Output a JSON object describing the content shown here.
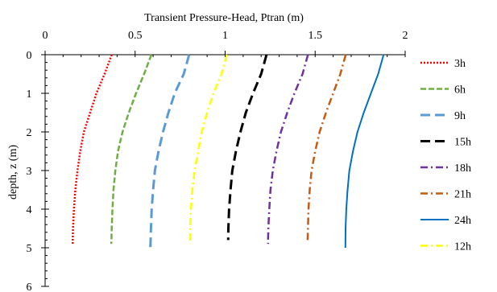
{
  "chart_data": {
    "type": "line",
    "title": "Transient Pressure-Head, Ptran (m)",
    "xlabel": "Transient Pressure-Head, Ptran (m)",
    "ylabel": "depth, z (m)",
    "xlim": [
      0,
      2
    ],
    "ylim": [
      0,
      6
    ],
    "x_axis_position": "top",
    "y_axis_reversed": true,
    "xticks": [
      "0",
      "0.5",
      "1",
      "1.5",
      "2"
    ],
    "yticks": [
      "0",
      "1",
      "2",
      "3",
      "4",
      "5",
      "6"
    ],
    "grid": false,
    "legend_position": "right",
    "series": [
      {
        "name": "3h",
        "color": "#ff0000",
        "dash": "dot",
        "points": [
          [
            0.37,
            0
          ],
          [
            0.33,
            0.5
          ],
          [
            0.285,
            1
          ],
          [
            0.25,
            1.5
          ],
          [
            0.215,
            2
          ],
          [
            0.195,
            2.5
          ],
          [
            0.18,
            3
          ],
          [
            0.168,
            3.5
          ],
          [
            0.16,
            4
          ],
          [
            0.155,
            4.5
          ],
          [
            0.153,
            4.9
          ]
        ]
      },
      {
        "name": "6h",
        "color": "#70ad47",
        "dash": "dash",
        "points": [
          [
            0.59,
            0
          ],
          [
            0.55,
            0.5
          ],
          [
            0.505,
            1
          ],
          [
            0.465,
            1.5
          ],
          [
            0.43,
            2
          ],
          [
            0.405,
            2.5
          ],
          [
            0.39,
            3
          ],
          [
            0.38,
            3.5
          ],
          [
            0.374,
            4
          ],
          [
            0.37,
            4.5
          ],
          [
            0.368,
            4.9
          ]
        ]
      },
      {
        "name": "9h",
        "color": "#5b9bd5",
        "dash": "longdash",
        "points": [
          [
            0.8,
            0
          ],
          [
            0.77,
            0.5
          ],
          [
            0.72,
            1
          ],
          [
            0.685,
            1.5
          ],
          [
            0.655,
            2
          ],
          [
            0.63,
            2.5
          ],
          [
            0.61,
            3
          ],
          [
            0.6,
            3.5
          ],
          [
            0.592,
            4
          ],
          [
            0.588,
            4.5
          ],
          [
            0.585,
            5
          ]
        ]
      },
      {
        "name": "15h",
        "color": "#000000",
        "dash": "longdash",
        "points": [
          [
            1.23,
            0
          ],
          [
            1.2,
            0.5
          ],
          [
            1.155,
            1
          ],
          [
            1.115,
            1.5
          ],
          [
            1.085,
            2
          ],
          [
            1.06,
            2.5
          ],
          [
            1.04,
            3
          ],
          [
            1.03,
            3.5
          ],
          [
            1.022,
            4
          ],
          [
            1.018,
            4.5
          ],
          [
            1.017,
            4.8
          ]
        ]
      },
      {
        "name": "18h",
        "color": "#7030a0",
        "dash": "dashdot",
        "points": [
          [
            1.46,
            0
          ],
          [
            1.43,
            0.5
          ],
          [
            1.385,
            1
          ],
          [
            1.345,
            1.5
          ],
          [
            1.31,
            2
          ],
          [
            1.285,
            2.5
          ],
          [
            1.265,
            3
          ],
          [
            1.252,
            3.5
          ],
          [
            1.245,
            4
          ],
          [
            1.24,
            4.5
          ],
          [
            1.238,
            4.9
          ]
        ]
      },
      {
        "name": "21h",
        "color": "#c55a11",
        "dash": "dashdot",
        "points": [
          [
            1.67,
            0
          ],
          [
            1.64,
            0.5
          ],
          [
            1.6,
            1
          ],
          [
            1.56,
            1.5
          ],
          [
            1.525,
            2
          ],
          [
            1.5,
            2.5
          ],
          [
            1.48,
            3
          ],
          [
            1.47,
            3.5
          ],
          [
            1.463,
            4
          ],
          [
            1.46,
            4.5
          ],
          [
            1.458,
            4.8
          ]
        ]
      },
      {
        "name": "24h",
        "color": "#0070c0",
        "dash": "solid",
        "points": [
          [
            1.88,
            0
          ],
          [
            1.85,
            0.5
          ],
          [
            1.81,
            1
          ],
          [
            1.77,
            1.5
          ],
          [
            1.735,
            2
          ],
          [
            1.71,
            2.5
          ],
          [
            1.69,
            3
          ],
          [
            1.68,
            3.5
          ],
          [
            1.673,
            4
          ],
          [
            1.669,
            4.5
          ],
          [
            1.668,
            5
          ]
        ]
      },
      {
        "name": "12h",
        "color": "#ffff00",
        "dash": "dashdot",
        "points": [
          [
            1.01,
            0
          ],
          [
            0.98,
            0.5
          ],
          [
            0.935,
            1
          ],
          [
            0.9,
            1.5
          ],
          [
            0.87,
            2
          ],
          [
            0.85,
            2.5
          ],
          [
            0.83,
            3
          ],
          [
            0.818,
            3.5
          ],
          [
            0.81,
            4
          ],
          [
            0.806,
            4.5
          ],
          [
            0.805,
            4.9
          ]
        ]
      }
    ]
  }
}
